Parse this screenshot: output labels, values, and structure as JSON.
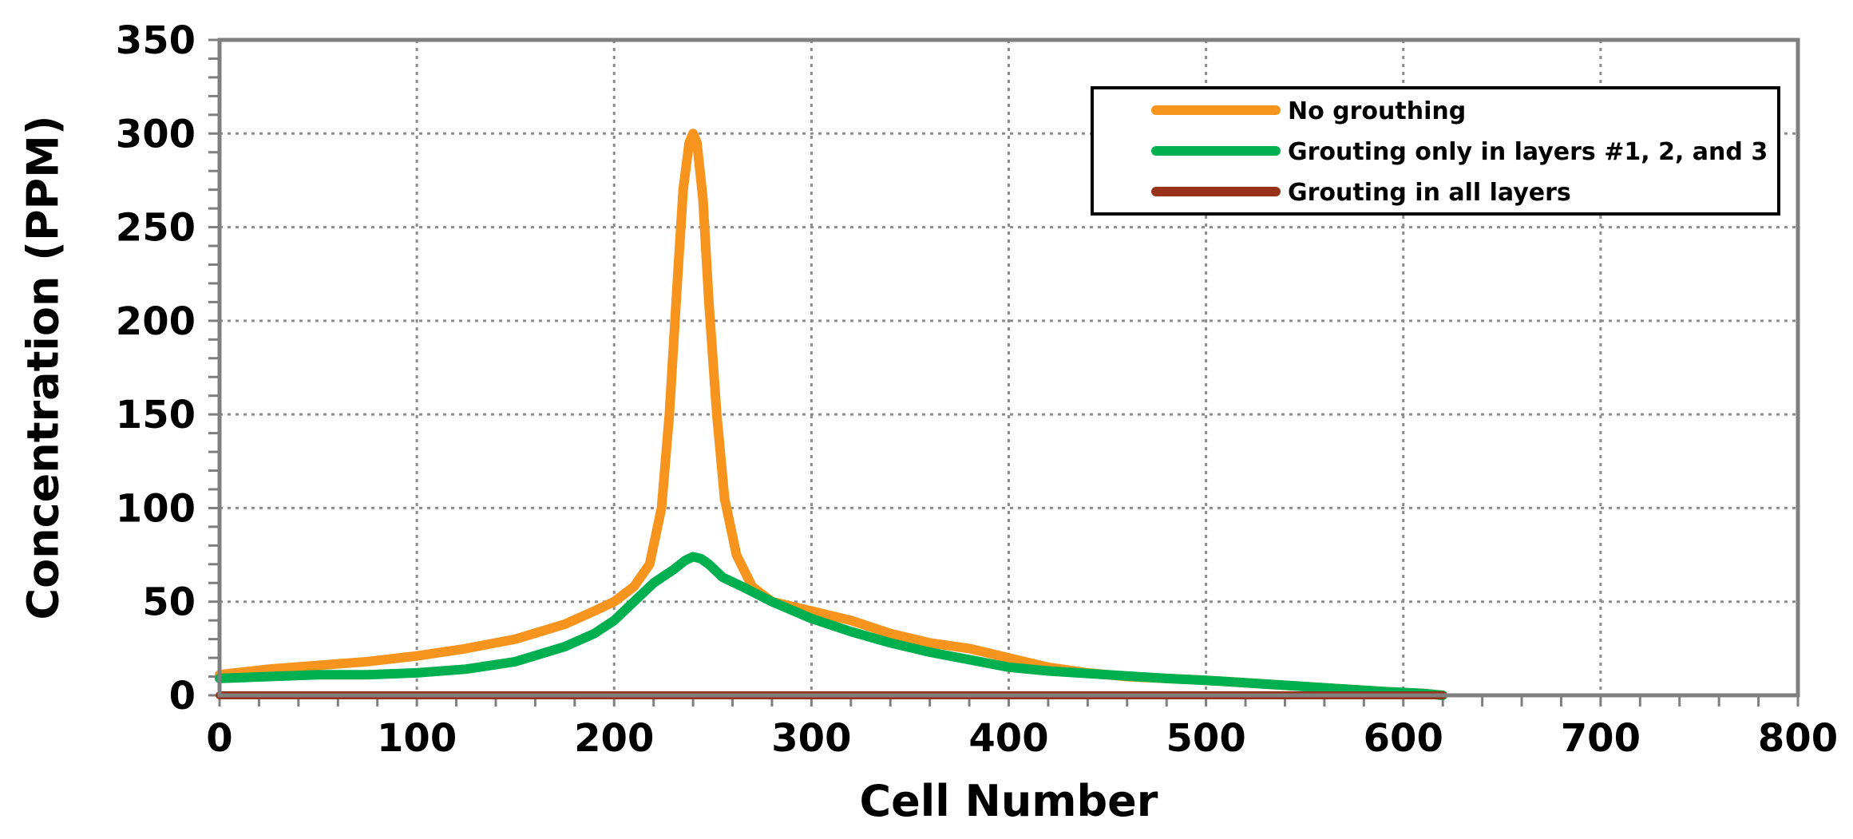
{
  "chart_data": {
    "type": "line",
    "title": "",
    "xlabel": "Cell Number",
    "ylabel": "Concentration (PPM)",
    "xlim": [
      0,
      800
    ],
    "ylim": [
      0,
      350
    ],
    "xticks": [
      0,
      100,
      200,
      300,
      400,
      500,
      600,
      700,
      800
    ],
    "yticks": [
      0,
      50,
      100,
      150,
      200,
      250,
      300,
      350
    ],
    "grid": true,
    "legend_position": "top-right",
    "series": [
      {
        "name": "No grouthing",
        "color": "#f7941d",
        "x": [
          0,
          25,
          50,
          75,
          100,
          125,
          150,
          175,
          190,
          200,
          210,
          218,
          224,
          228,
          232,
          235,
          238,
          240,
          242,
          245,
          248,
          252,
          256,
          262,
          270,
          280,
          300,
          320,
          340,
          360,
          380,
          400,
          420,
          440,
          460,
          480,
          500,
          530,
          560,
          590,
          610,
          620
        ],
        "y": [
          11,
          14,
          16,
          18,
          21,
          25,
          30,
          38,
          45,
          50,
          58,
          70,
          100,
          150,
          220,
          270,
          295,
          300,
          295,
          265,
          210,
          150,
          105,
          75,
          58,
          50,
          45,
          40,
          33,
          28,
          25,
          20,
          15,
          12,
          10,
          9,
          8,
          6,
          4,
          2,
          1,
          0
        ]
      },
      {
        "name": "Grouting only in layers #1, 2, and 3",
        "color": "#00b050",
        "x": [
          0,
          25,
          50,
          75,
          100,
          125,
          150,
          175,
          190,
          200,
          210,
          220,
          230,
          236,
          240,
          244,
          248,
          255,
          265,
          280,
          300,
          320,
          340,
          360,
          380,
          400,
          420,
          450,
          480,
          500,
          530,
          560,
          590,
          610,
          620
        ],
        "y": [
          9,
          10,
          11,
          11,
          12,
          14,
          18,
          26,
          33,
          40,
          50,
          60,
          67,
          72,
          74,
          73,
          70,
          63,
          58,
          50,
          41,
          34,
          28,
          23,
          19,
          15,
          13,
          11,
          9,
          8,
          6,
          4,
          2,
          1,
          0
        ]
      },
      {
        "name": "Grouting in all layers",
        "color": "#953218",
        "x": [
          0,
          100,
          200,
          300,
          400,
          500,
          600,
          620
        ],
        "y": [
          0,
          0,
          0,
          0,
          0,
          0,
          0,
          0
        ]
      }
    ]
  }
}
